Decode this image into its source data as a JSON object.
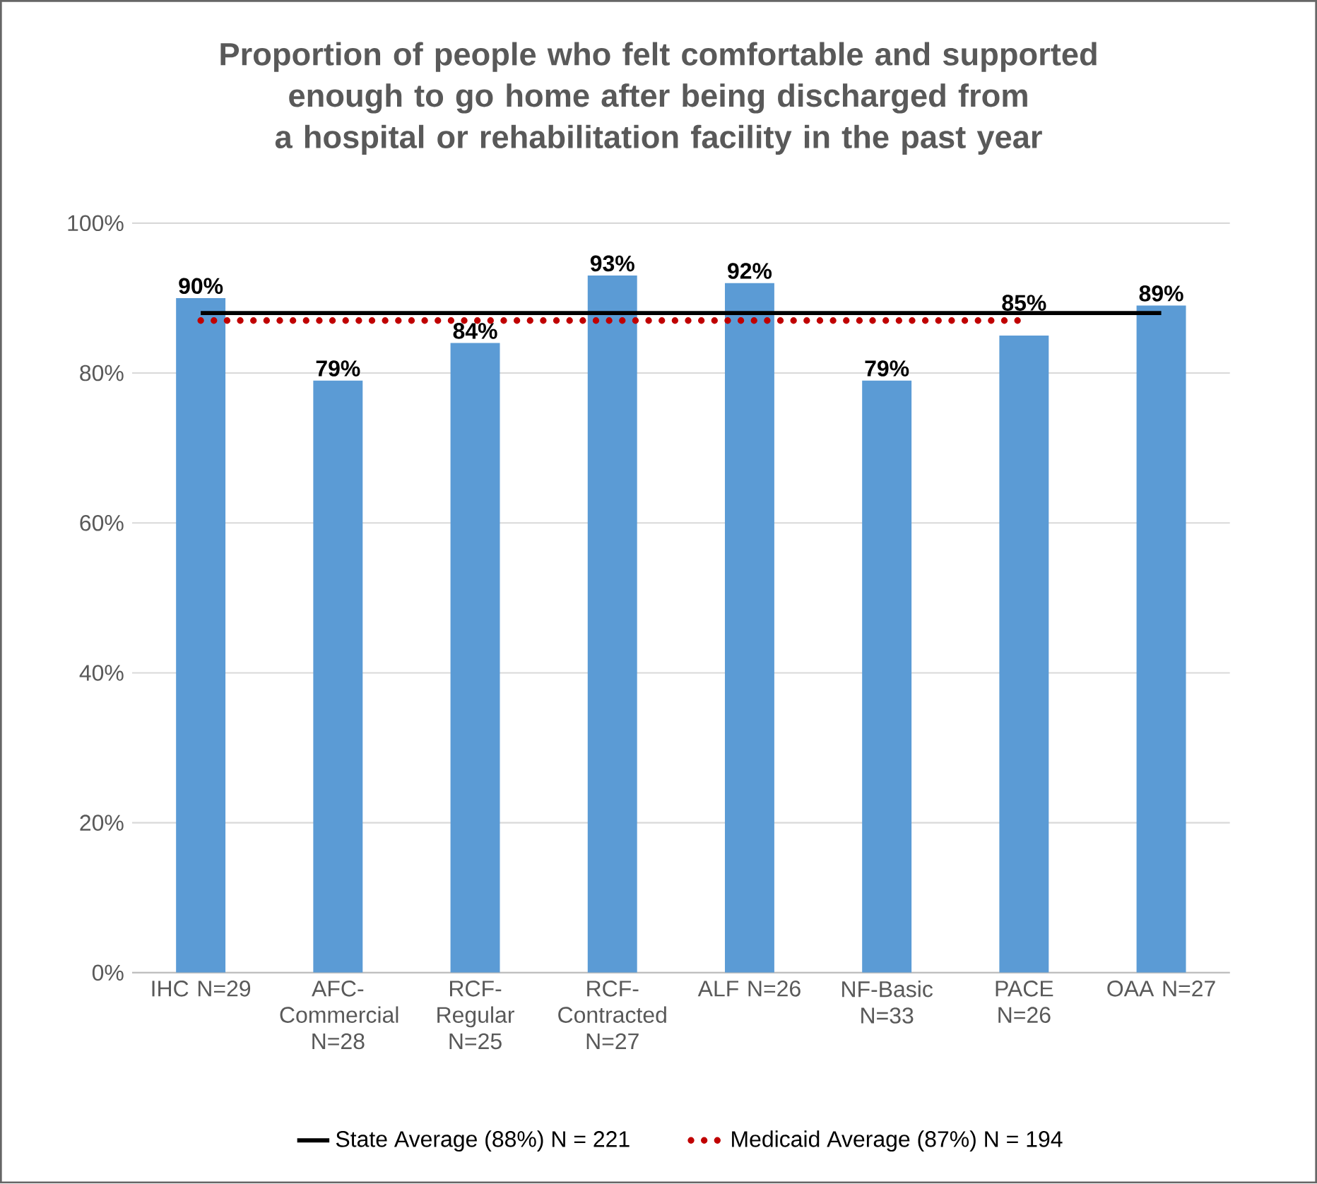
{
  "chart_data": {
    "type": "bar",
    "title": "Proportion of people who felt comfortable and supported enough to go home after being discharged from a hospital or rehabilitation facility in the past year",
    "categories": [
      "IHC N=29",
      "AFC-Commercial N=28",
      "RCF-Regular N=25",
      "RCF-Contracted N=27",
      "ALF N=26",
      "NF-Basic N=33",
      "PACE N=26",
      "OAA N=27"
    ],
    "series": [
      {
        "type": "bar",
        "color": "#5b9bd5",
        "values": [
          90,
          79,
          84,
          93,
          92,
          79,
          85,
          89
        ],
        "value_labels": [
          "90%",
          "79%",
          "84%",
          "93%",
          "92%",
          "79%",
          "85%",
          "89%"
        ]
      },
      {
        "type": "line",
        "name": "State Average (88%) N = 221",
        "color": "#000000",
        "line_style": "solid",
        "values": [
          88,
          88,
          88,
          88,
          88,
          88,
          88,
          88
        ]
      },
      {
        "type": "line",
        "name": "Medicaid Average (87%) N = 194",
        "color": "#c00000",
        "line_style": "dotted",
        "values": [
          87,
          87,
          87,
          87,
          87,
          87,
          87,
          null
        ]
      }
    ],
    "ylim": [
      0,
      100
    ],
    "yticks": [
      {
        "value": 0,
        "label": "0%"
      },
      {
        "value": 20,
        "label": "20%"
      },
      {
        "value": 40,
        "label": "40%"
      },
      {
        "value": 60,
        "label": "60%"
      },
      {
        "value": 80,
        "label": "80%"
      },
      {
        "value": 100,
        "label": "100%"
      }
    ],
    "grid": "y",
    "legend": "bottom"
  }
}
